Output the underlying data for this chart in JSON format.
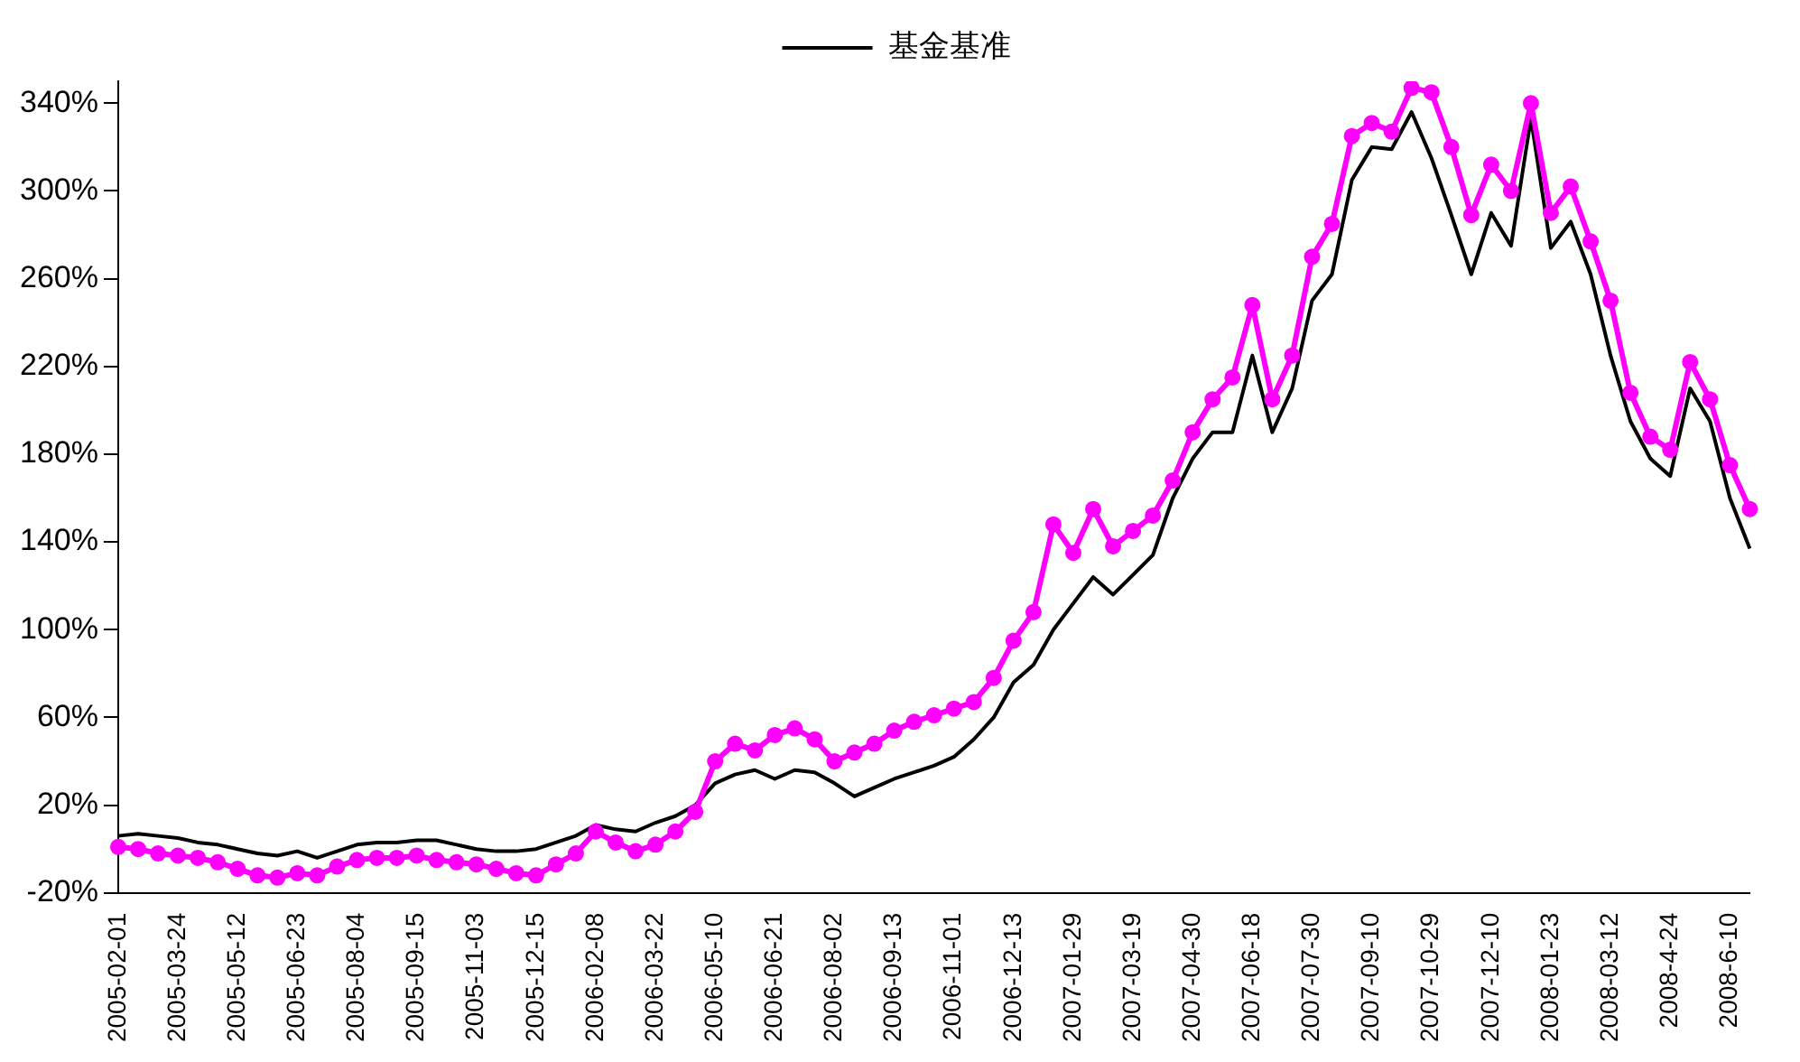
{
  "chart_data": {
    "type": "line",
    "categories": [
      "2005-02-01",
      null,
      null,
      "2005-03-24",
      null,
      null,
      "2005-05-12",
      null,
      null,
      "2005-06-23",
      null,
      null,
      "2005-08-04",
      null,
      null,
      "2005-09-15",
      null,
      null,
      "2005-11-03",
      null,
      null,
      "2005-12-15",
      null,
      null,
      "2006-02-08",
      null,
      null,
      "2006-03-22",
      null,
      null,
      "2006-05-10",
      null,
      null,
      "2006-06-21",
      null,
      null,
      "2006-08-02",
      null,
      null,
      "2006-09-13",
      null,
      null,
      "2006-11-01",
      null,
      null,
      "2006-12-13",
      null,
      null,
      "2007-01-29",
      null,
      null,
      "2007-03-19",
      null,
      null,
      "2007-04-30",
      null,
      null,
      "2007-06-18",
      null,
      null,
      "2007-07-30",
      null,
      null,
      "2007-09-10",
      null,
      null,
      "2007-10-29",
      null,
      null,
      "2007-12-10",
      null,
      null,
      "2008-01-23",
      null,
      null,
      "2008-03-12",
      null,
      null,
      "2008-4-24",
      null,
      null,
      "2008-6-10",
      null
    ],
    "series": [
      {
        "color": "#ff00ff",
        "marker": "circle",
        "values": [
          1,
          0,
          -2,
          -3,
          -4,
          -6,
          -9,
          -12,
          -13,
          -11,
          -12,
          -8,
          -5,
          -4,
          -4,
          -3,
          -5,
          -6,
          -7,
          -9,
          -11,
          -12,
          -7,
          -2,
          8,
          3,
          -1,
          2,
          8,
          17,
          40,
          48,
          45,
          52,
          55,
          50,
          40,
          44,
          48,
          54,
          58,
          61,
          64,
          67,
          78,
          95,
          108,
          148,
          135,
          155,
          138,
          145,
          152,
          168,
          190,
          205,
          215,
          248,
          205,
          225,
          270,
          285,
          325,
          331,
          327,
          347,
          345,
          320,
          289,
          312,
          300,
          340,
          290,
          302,
          277,
          250,
          208,
          188,
          182,
          222,
          205,
          175,
          155
        ]
      },
      {
        "name": "基金基准",
        "color": "#000000",
        "marker": "none",
        "values": [
          6,
          7,
          6,
          5,
          3,
          2,
          0,
          -2,
          -3,
          -1,
          -4,
          -1,
          2,
          3,
          3,
          4,
          4,
          2,
          0,
          -1,
          -1,
          0,
          3,
          6,
          11,
          9,
          8,
          12,
          15,
          20,
          30,
          34,
          36,
          32,
          36,
          35,
          30,
          24,
          28,
          32,
          35,
          38,
          42,
          50,
          60,
          76,
          84,
          100,
          112,
          124,
          116,
          125,
          134,
          160,
          178,
          190,
          190,
          225,
          190,
          210,
          250,
          262,
          305,
          320,
          319,
          336,
          315,
          289,
          262,
          290,
          275,
          333,
          274,
          286,
          262,
          225,
          195,
          178,
          170,
          210,
          195,
          160,
          137
        ]
      }
    ],
    "ylim": [
      -20,
      350
    ],
    "yticks": [
      {
        "value": -20,
        "label": "-20%"
      },
      {
        "value": 20,
        "label": "20%"
      },
      {
        "value": 60,
        "label": "60%"
      },
      {
        "value": 100,
        "label": "100%"
      },
      {
        "value": 140,
        "label": "140%"
      },
      {
        "value": 180,
        "label": "180%"
      },
      {
        "value": 220,
        "label": "220%"
      },
      {
        "value": 260,
        "label": "260%"
      },
      {
        "value": 300,
        "label": "300%"
      },
      {
        "value": 340,
        "label": "340%"
      }
    ],
    "grid": false,
    "legend": "top",
    "line_style": "solid"
  }
}
